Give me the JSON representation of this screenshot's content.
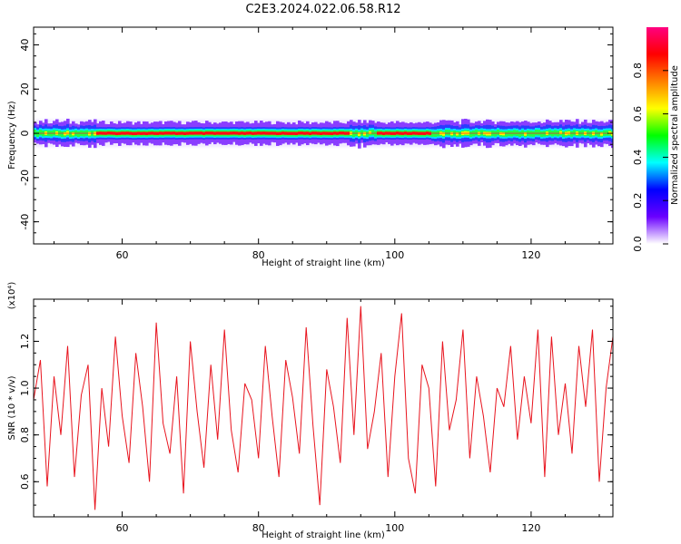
{
  "page": {
    "title": "C2E3.2024.022.06.58.R12"
  },
  "chart_data": [
    {
      "type": "heatmap",
      "title": "C2E3.2024.022.06.58.R12",
      "xlabel": "Height of straight line (km)",
      "ylabel": "Frequency (Hz)",
      "xlim": [
        47,
        132
      ],
      "ylim": [
        -50,
        48
      ],
      "xticks": [
        "60",
        "80",
        "100",
        "120"
      ],
      "yticks": [
        "40",
        "20",
        "0",
        "-20",
        "-40"
      ],
      "ridge_frequency": 0,
      "band_halfwidth_hz": 5,
      "strong_segments_km": [
        [
          56,
          68
        ],
        [
          68,
          93
        ],
        [
          97,
          105
        ]
      ],
      "colorbar": {
        "label": "Normalized spectral amplitude",
        "range": [
          0,
          1
        ],
        "ticks": [
          "0.0",
          "0.2",
          "0.4",
          "0.6",
          "0.8"
        ],
        "colors": [
          "#ffffff",
          "#6a00ff",
          "#0000ff",
          "#00ffff",
          "#00ff00",
          "#ffff00",
          "#ff8000",
          "#ff0000",
          "#ff0080"
        ]
      }
    },
    {
      "type": "line",
      "xlabel": "Height of straight line (km)",
      "ylabel": "SNR (10 * v/v)",
      "y_multiplier": "(x10⁴)",
      "xlim": [
        47,
        132
      ],
      "ylim": [
        0.45,
        1.38
      ],
      "xticks": [
        "60",
        "80",
        "100",
        "120"
      ],
      "yticks": [
        "1.2",
        "1.0",
        "0.8",
        "0.6"
      ],
      "color": "#e8141e",
      "x": [
        47,
        48,
        49,
        50,
        51,
        52,
        53,
        54,
        55,
        56,
        57,
        58,
        59,
        60,
        61,
        62,
        63,
        64,
        65,
        66,
        67,
        68,
        69,
        70,
        71,
        72,
        73,
        74,
        75,
        76,
        77,
        78,
        79,
        80,
        81,
        82,
        83,
        84,
        85,
        86,
        87,
        88,
        89,
        90,
        91,
        92,
        93,
        94,
        95,
        96,
        97,
        98,
        99,
        100,
        101,
        102,
        103,
        104,
        105,
        106,
        107,
        108,
        109,
        110,
        111,
        112,
        113,
        114,
        115,
        116,
        117,
        118,
        119,
        120,
        121,
        122,
        123,
        124,
        125,
        126,
        127,
        128,
        129,
        130,
        131,
        132
      ],
      "y": [
        0.95,
        1.12,
        0.58,
        1.05,
        0.8,
        1.18,
        0.62,
        0.97,
        1.1,
        0.48,
        1.0,
        0.75,
        1.22,
        0.88,
        0.68,
        1.15,
        0.92,
        0.6,
        1.28,
        0.85,
        0.72,
        1.05,
        0.55,
        1.2,
        0.9,
        0.66,
        1.1,
        0.78,
        1.25,
        0.82,
        0.64,
        1.02,
        0.95,
        0.7,
        1.18,
        0.88,
        0.62,
        1.12,
        0.96,
        0.72,
        1.26,
        0.84,
        0.5,
        1.08,
        0.92,
        0.68,
        1.3,
        0.8,
        1.35,
        0.74,
        0.9,
        1.15,
        0.62,
        1.05,
        1.32,
        0.7,
        0.55,
        1.1,
        1.0,
        0.58,
        1.2,
        0.82,
        0.95,
        1.25,
        0.7,
        1.05,
        0.88,
        0.64,
        1.0,
        0.92,
        1.18,
        0.78,
        1.05,
        0.85,
        1.25,
        0.62,
        1.22,
        0.8,
        1.02,
        0.72,
        1.18,
        0.92,
        1.25,
        0.6,
        1.0,
        1.22
      ]
    }
  ]
}
